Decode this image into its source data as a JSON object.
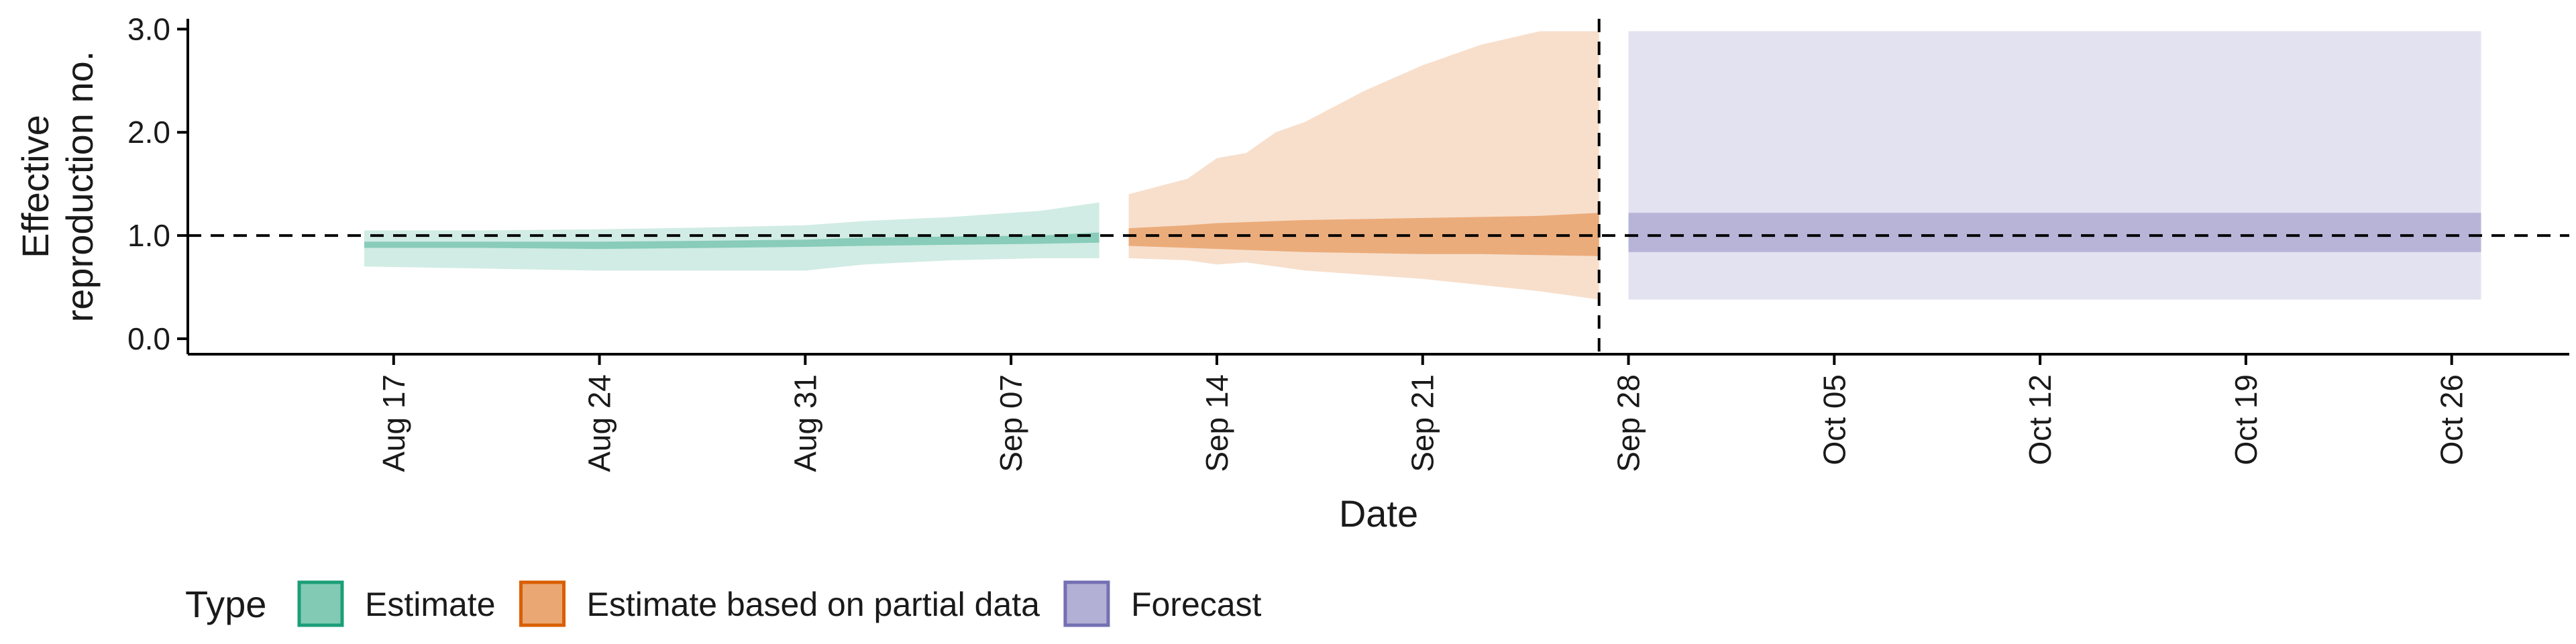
{
  "chart_data": {
    "type": "area",
    "xlabel": "Date",
    "ylabel": [
      "Effective",
      "reproduction no."
    ],
    "x_range": [
      "2020-08-10",
      "2020-10-30"
    ],
    "ylim": [
      -0.15,
      3.1
    ],
    "yticks": [
      0.0,
      1.0,
      2.0,
      3.0
    ],
    "ytick_labels": [
      "0.0",
      "1.0",
      "2.0",
      "3.0"
    ],
    "xticks": [
      "2020-08-17",
      "2020-08-24",
      "2020-08-31",
      "2020-09-07",
      "2020-09-14",
      "2020-09-21",
      "2020-09-28",
      "2020-10-05",
      "2020-10-12",
      "2020-10-19",
      "2020-10-26"
    ],
    "xtick_labels": [
      "Aug 17",
      "Aug 24",
      "Aug 31",
      "Sep 07",
      "Sep 14",
      "Sep 21",
      "Sep 28",
      "Oct 05",
      "Oct 12",
      "Oct 19",
      "Oct 26"
    ],
    "reference_hline": 1.0,
    "reference_vline": "2020-09-27",
    "grid": false,
    "legend_title": "Type",
    "legend_position": "bottom",
    "series": [
      {
        "name": "Estimate",
        "color": "#1b9e77",
        "x": [
          "2020-08-16",
          "2020-08-20",
          "2020-08-24",
          "2020-08-28",
          "2020-08-31",
          "2020-09-02",
          "2020-09-05",
          "2020-09-08",
          "2020-09-10"
        ],
        "outer_lo": [
          0.7,
          0.68,
          0.66,
          0.66,
          0.66,
          0.72,
          0.76,
          0.78,
          0.78
        ],
        "outer_hi": [
          1.05,
          1.05,
          1.06,
          1.08,
          1.1,
          1.14,
          1.18,
          1.24,
          1.32
        ],
        "inner_lo": [
          0.88,
          0.88,
          0.87,
          0.88,
          0.89,
          0.9,
          0.91,
          0.92,
          0.93
        ],
        "inner_hi": [
          0.94,
          0.94,
          0.94,
          0.95,
          0.96,
          0.98,
          0.99,
          1.0,
          1.03
        ]
      },
      {
        "name": "Estimate based on partial data",
        "color": "#d95f02",
        "x": [
          "2020-09-11",
          "2020-09-13",
          "2020-09-14",
          "2020-09-15",
          "2020-09-16",
          "2020-09-17",
          "2020-09-19",
          "2020-09-21",
          "2020-09-23",
          "2020-09-25",
          "2020-09-27"
        ],
        "outer_lo": [
          0.78,
          0.76,
          0.72,
          0.74,
          0.7,
          0.66,
          0.62,
          0.58,
          0.52,
          0.46,
          0.38
        ],
        "outer_hi": [
          1.4,
          1.55,
          1.75,
          1.8,
          2.0,
          2.1,
          2.4,
          2.65,
          2.85,
          2.98,
          2.98
        ],
        "inner_lo": [
          0.9,
          0.88,
          0.87,
          0.86,
          0.85,
          0.84,
          0.83,
          0.82,
          0.82,
          0.81,
          0.8
        ],
        "inner_hi": [
          1.07,
          1.1,
          1.12,
          1.13,
          1.14,
          1.15,
          1.16,
          1.17,
          1.18,
          1.19,
          1.22
        ]
      },
      {
        "name": "Forecast",
        "color": "#7570b3",
        "x": [
          "2020-09-28",
          "2020-10-27"
        ],
        "outer_lo": [
          0.38,
          0.38
        ],
        "outer_hi": [
          2.98,
          2.98
        ],
        "inner_lo": [
          0.84,
          0.84
        ],
        "inner_hi": [
          1.22,
          1.22
        ]
      }
    ]
  }
}
